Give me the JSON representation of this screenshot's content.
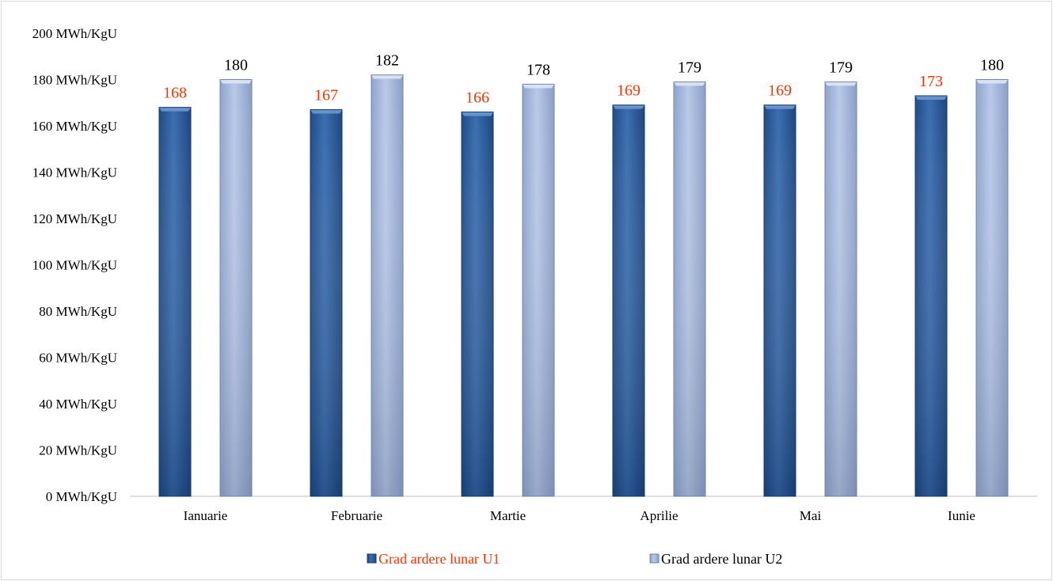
{
  "chart_data": {
    "type": "bar",
    "title": "",
    "xlabel": "",
    "ylabel": "",
    "categories": [
      "Ianuarie",
      "Februarie",
      "Martie",
      "Aprilie",
      "Mai",
      "Iunie"
    ],
    "series": [
      {
        "name": "Grad ardere lunar U1",
        "values": [
          168,
          167,
          166,
          169,
          169,
          173
        ],
        "color": "#2f5f9e",
        "label_color": "#ff3300"
      },
      {
        "name": "Grad ardere lunar U2",
        "values": [
          180,
          182,
          178,
          179,
          179,
          180
        ],
        "color": "#a9bde0",
        "label_color": "#000000"
      }
    ],
    "ylim": [
      0,
      200
    ],
    "y_ticks": [
      "0 MWh/KgU",
      "20 MWh/KgU",
      "40 MWh/KgU",
      "60 MWh/KgU",
      "80 MWh/KgU",
      "100 MWh/KgU",
      "120 MWh/KgU",
      "140 MWh/KgU",
      "160 MWh/KgU",
      "180 MWh/KgU",
      "200 MWh/KgU"
    ],
    "y_tick_values": [
      0,
      20,
      40,
      60,
      80,
      100,
      120,
      140,
      160,
      180,
      200
    ],
    "grid": false,
    "legend_position": "bottom"
  }
}
